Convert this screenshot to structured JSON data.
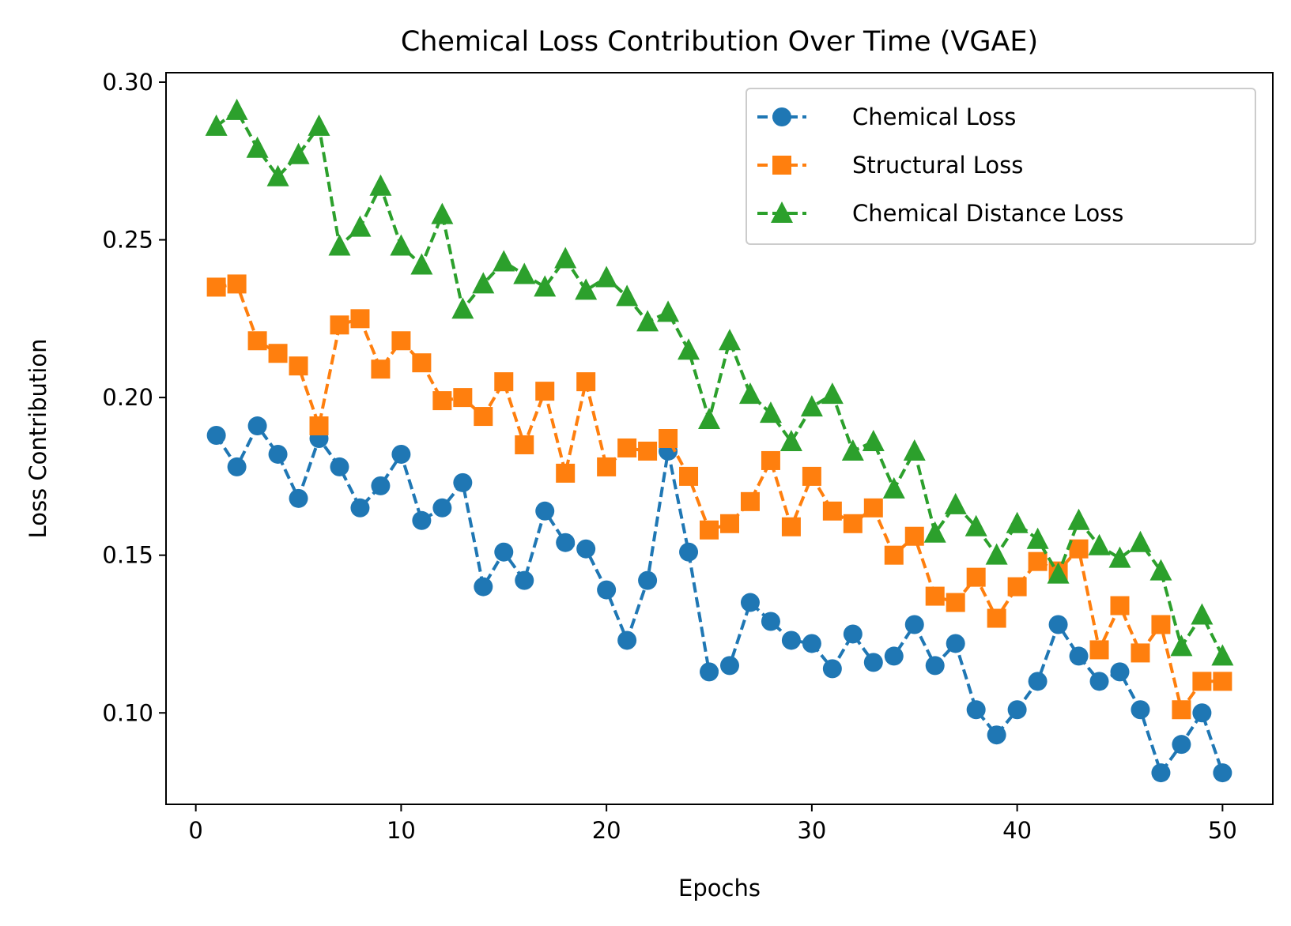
{
  "chart_data": {
    "type": "line",
    "title": "Chemical Loss Contribution Over Time (VGAE)",
    "xlabel": "Epochs",
    "ylabel": "Loss Contribution",
    "xlim": [
      -1.45,
      52.45
    ],
    "ylim": [
      0.071,
      0.303
    ],
    "xticks": [
      0,
      10,
      20,
      30,
      40,
      50
    ],
    "yticks": [
      0.1,
      0.15,
      0.2,
      0.25,
      0.3
    ],
    "xtick_labels": [
      "0",
      "10",
      "20",
      "30",
      "40",
      "50"
    ],
    "ytick_labels": [
      "0.10",
      "0.15",
      "0.20",
      "0.25",
      "0.30"
    ],
    "grid": false,
    "legend_position": "top-right",
    "x": [
      1,
      2,
      3,
      4,
      5,
      6,
      7,
      8,
      9,
      10,
      11,
      12,
      13,
      14,
      15,
      16,
      17,
      18,
      19,
      20,
      21,
      22,
      23,
      24,
      25,
      26,
      27,
      28,
      29,
      30,
      31,
      32,
      33,
      34,
      35,
      36,
      37,
      38,
      39,
      40,
      41,
      42,
      43,
      44,
      45,
      46,
      47,
      48,
      49,
      50
    ],
    "series": [
      {
        "name": "Chemical Loss",
        "color": "#1f77b4",
        "marker": "circle",
        "line_style": "dashed",
        "values": [
          0.188,
          0.178,
          0.191,
          0.182,
          0.168,
          0.187,
          0.178,
          0.165,
          0.172,
          0.182,
          0.161,
          0.165,
          0.173,
          0.14,
          0.151,
          0.142,
          0.164,
          0.154,
          0.152,
          0.139,
          0.123,
          0.142,
          0.183,
          0.151,
          0.113,
          0.115,
          0.135,
          0.129,
          0.123,
          0.122,
          0.114,
          0.125,
          0.116,
          0.118,
          0.128,
          0.115,
          0.122,
          0.101,
          0.093,
          0.101,
          0.11,
          0.128,
          0.118,
          0.11,
          0.113,
          0.101,
          0.081,
          0.09,
          0.1,
          0.081
        ]
      },
      {
        "name": "Structural Loss",
        "color": "#ff7f0e",
        "marker": "square",
        "line_style": "dashed",
        "values": [
          0.235,
          0.236,
          0.218,
          0.214,
          0.21,
          0.191,
          0.223,
          0.225,
          0.209,
          0.218,
          0.211,
          0.199,
          0.2,
          0.194,
          0.205,
          0.185,
          0.202,
          0.176,
          0.205,
          0.178,
          0.184,
          0.183,
          0.187,
          0.175,
          0.158,
          0.16,
          0.167,
          0.18,
          0.159,
          0.175,
          0.164,
          0.16,
          0.165,
          0.15,
          0.156,
          0.137,
          0.135,
          0.143,
          0.13,
          0.14,
          0.148,
          0.145,
          0.152,
          0.12,
          0.134,
          0.119,
          0.128,
          0.101,
          0.11,
          0.11
        ]
      },
      {
        "name": "Chemical Distance Loss",
        "color": "#2ca02c",
        "marker": "triangle",
        "line_style": "dashed",
        "values": [
          0.286,
          0.291,
          0.279,
          0.27,
          0.277,
          0.286,
          0.248,
          0.254,
          0.267,
          0.248,
          0.242,
          0.258,
          0.228,
          0.236,
          0.243,
          0.239,
          0.235,
          0.244,
          0.234,
          0.238,
          0.232,
          0.224,
          0.227,
          0.215,
          0.193,
          0.218,
          0.201,
          0.195,
          0.186,
          0.197,
          0.201,
          0.183,
          0.186,
          0.171,
          0.183,
          0.157,
          0.166,
          0.159,
          0.15,
          0.16,
          0.155,
          0.144,
          0.161,
          0.153,
          0.149,
          0.154,
          0.145,
          0.121,
          0.131,
          0.118
        ]
      }
    ]
  }
}
